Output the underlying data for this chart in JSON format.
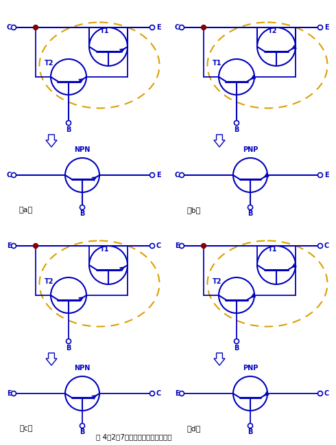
{
  "title": "图 4－2－7：复合管的四种连接方式",
  "bg_color": "#ffffff",
  "blue": "#0000BB",
  "yellow": "#DAA000",
  "red": "#880000",
  "panels": [
    {
      "label": "（a）",
      "eq_label": "NPN",
      "left": "C",
      "right": "E",
      "T1": "T1",
      "T2": "T2"
    },
    {
      "label": "（b）",
      "eq_label": "PNP",
      "left": "C",
      "right": "E",
      "T1": "T2",
      "T2": "T1"
    },
    {
      "label": "（c）",
      "eq_label": "NPN",
      "left": "E",
      "right": "C",
      "T1": "T1",
      "T2": "T2"
    },
    {
      "label": "（d）",
      "eq_label": "PNP",
      "left": "E",
      "right": "C",
      "T1": "T1",
      "T2": "T2"
    }
  ]
}
